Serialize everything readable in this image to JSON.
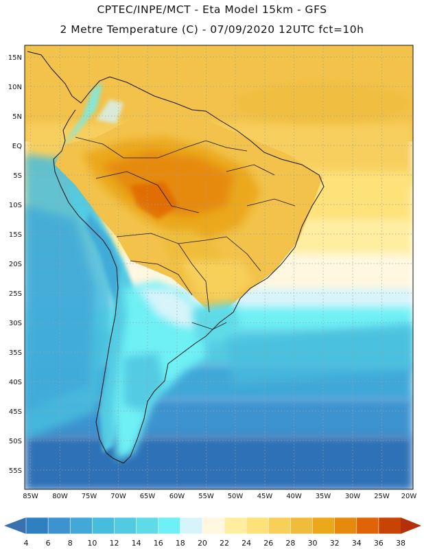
{
  "title_line1": "CPTEC/INPE/MCT -  Eta Model 15km - GFS",
  "title_line2": "2 Metre Temperature (C) - 07/09/2020 12UTC fct=10h",
  "lat_labels": [
    "15N",
    "10N",
    "5N",
    "EQ",
    "5S",
    "10S",
    "15S",
    "20S",
    "25S",
    "30S",
    "35S",
    "40S",
    "45S",
    "50S",
    "55S"
  ],
  "lon_labels": [
    "85W",
    "80W",
    "75W",
    "70W",
    "65W",
    "60W",
    "55W",
    "50W",
    "45W",
    "40W",
    "35W",
    "30W",
    "25W",
    "20W"
  ],
  "colorbar": {
    "ticks": [
      "4",
      "6",
      "8",
      "10",
      "12",
      "14",
      "16",
      "18",
      "20",
      "22",
      "24",
      "26",
      "28",
      "30",
      "32",
      "34",
      "36",
      "38"
    ],
    "colors": [
      "#3a6fb0",
      "#2f80c0",
      "#3c93cf",
      "#41a8d8",
      "#47bdde",
      "#52cbe2",
      "#5fdbe8",
      "#6ef0f5",
      "#d6f4fa",
      "#fff7e0",
      "#ffeea0",
      "#fde27a",
      "#f7d05a",
      "#efbd3b",
      "#eba81a",
      "#e68a0e",
      "#de6406",
      "#c84405",
      "#b3300a"
    ]
  },
  "chart_data": {
    "type": "heatmap",
    "variable": "2 Metre Temperature",
    "units": "C",
    "model": "Eta Model 15km - GFS",
    "run": "07/09/2020 12UTC",
    "forecast_hour": "fct=10h",
    "lon_range": [
      -85,
      -20
    ],
    "lat_range": [
      -57,
      17
    ],
    "color_scale_min": 4,
    "color_scale_max": 38,
    "color_scale_step": 2
  }
}
